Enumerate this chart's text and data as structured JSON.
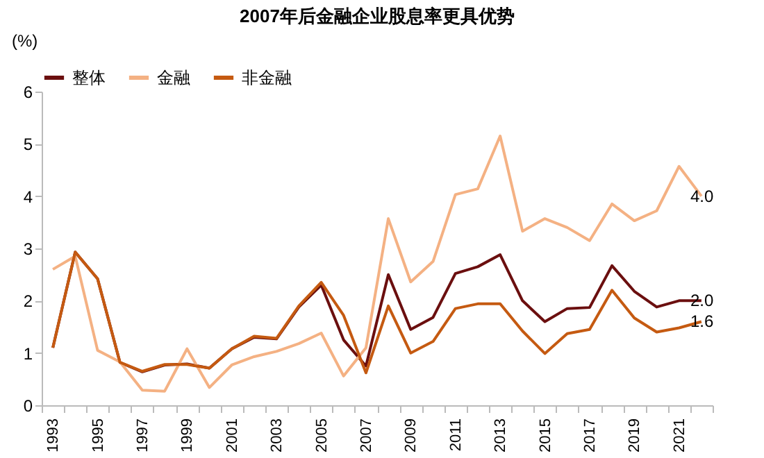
{
  "chart_data": {
    "type": "line",
    "title": "2007年后金融企业股息率更具优势",
    "ylabel": "(%)",
    "categories": [
      "1993",
      null,
      "1995",
      null,
      "1997",
      null,
      "1999",
      null,
      "2001",
      null,
      "2003",
      null,
      "2005",
      null,
      "2007",
      null,
      "2009",
      null,
      "2011",
      null,
      "2013",
      null,
      "2015",
      null,
      "2017",
      null,
      "2019",
      null,
      "2021",
      null
    ],
    "series": [
      {
        "name": "整体",
        "color": "#6b0f0f",
        "values": [
          1.1,
          2.93,
          2.42,
          0.82,
          0.64,
          0.77,
          0.79,
          0.71,
          1.08,
          1.3,
          1.27,
          1.88,
          2.3,
          1.25,
          0.75,
          2.5,
          1.45,
          1.68,
          2.52,
          2.65,
          2.88,
          2.0,
          1.6,
          1.85,
          1.87,
          2.67,
          2.18,
          1.88,
          2.0,
          2.0
        ],
        "value_labels": [
          null,
          null,
          null,
          null,
          null,
          null,
          null,
          null,
          null,
          null,
          null,
          null,
          null,
          null,
          null,
          null,
          null,
          null,
          null,
          null,
          null,
          null,
          null,
          null,
          null,
          null,
          null,
          null,
          null,
          "2.0"
        ]
      },
      {
        "name": "金融",
        "color": "#f4b183",
        "values": [
          2.6,
          2.85,
          1.05,
          0.83,
          0.29,
          0.27,
          1.08,
          0.34,
          0.77,
          0.93,
          1.03,
          1.18,
          1.38,
          0.56,
          1.1,
          3.57,
          2.36,
          2.75,
          4.03,
          4.14,
          5.15,
          3.33,
          3.57,
          3.4,
          3.15,
          3.85,
          3.53,
          3.72,
          4.57,
          4.0
        ],
        "value_labels": [
          null,
          null,
          null,
          null,
          null,
          null,
          null,
          null,
          null,
          null,
          null,
          null,
          null,
          null,
          null,
          null,
          null,
          null,
          null,
          null,
          null,
          null,
          null,
          null,
          null,
          null,
          null,
          null,
          null,
          "4.0"
        ]
      },
      {
        "name": "非金融",
        "color": "#c55a11",
        "values": [
          1.1,
          2.93,
          2.42,
          0.82,
          0.65,
          0.78,
          0.78,
          0.71,
          1.08,
          1.32,
          1.28,
          1.9,
          2.35,
          1.72,
          0.62,
          1.9,
          1.0,
          1.22,
          1.85,
          1.94,
          1.94,
          1.42,
          0.99,
          1.37,
          1.45,
          2.2,
          1.67,
          1.4,
          1.48,
          1.6
        ],
        "value_labels": [
          null,
          null,
          null,
          null,
          null,
          null,
          null,
          null,
          null,
          null,
          null,
          null,
          null,
          null,
          null,
          null,
          null,
          null,
          null,
          null,
          null,
          null,
          null,
          null,
          null,
          null,
          null,
          null,
          null,
          "1.6"
        ]
      }
    ],
    "ylim": [
      0,
      6
    ],
    "yticks": [
      0,
      1,
      2,
      3,
      4,
      5,
      6
    ],
    "legend": "top",
    "line_style": "solid"
  }
}
